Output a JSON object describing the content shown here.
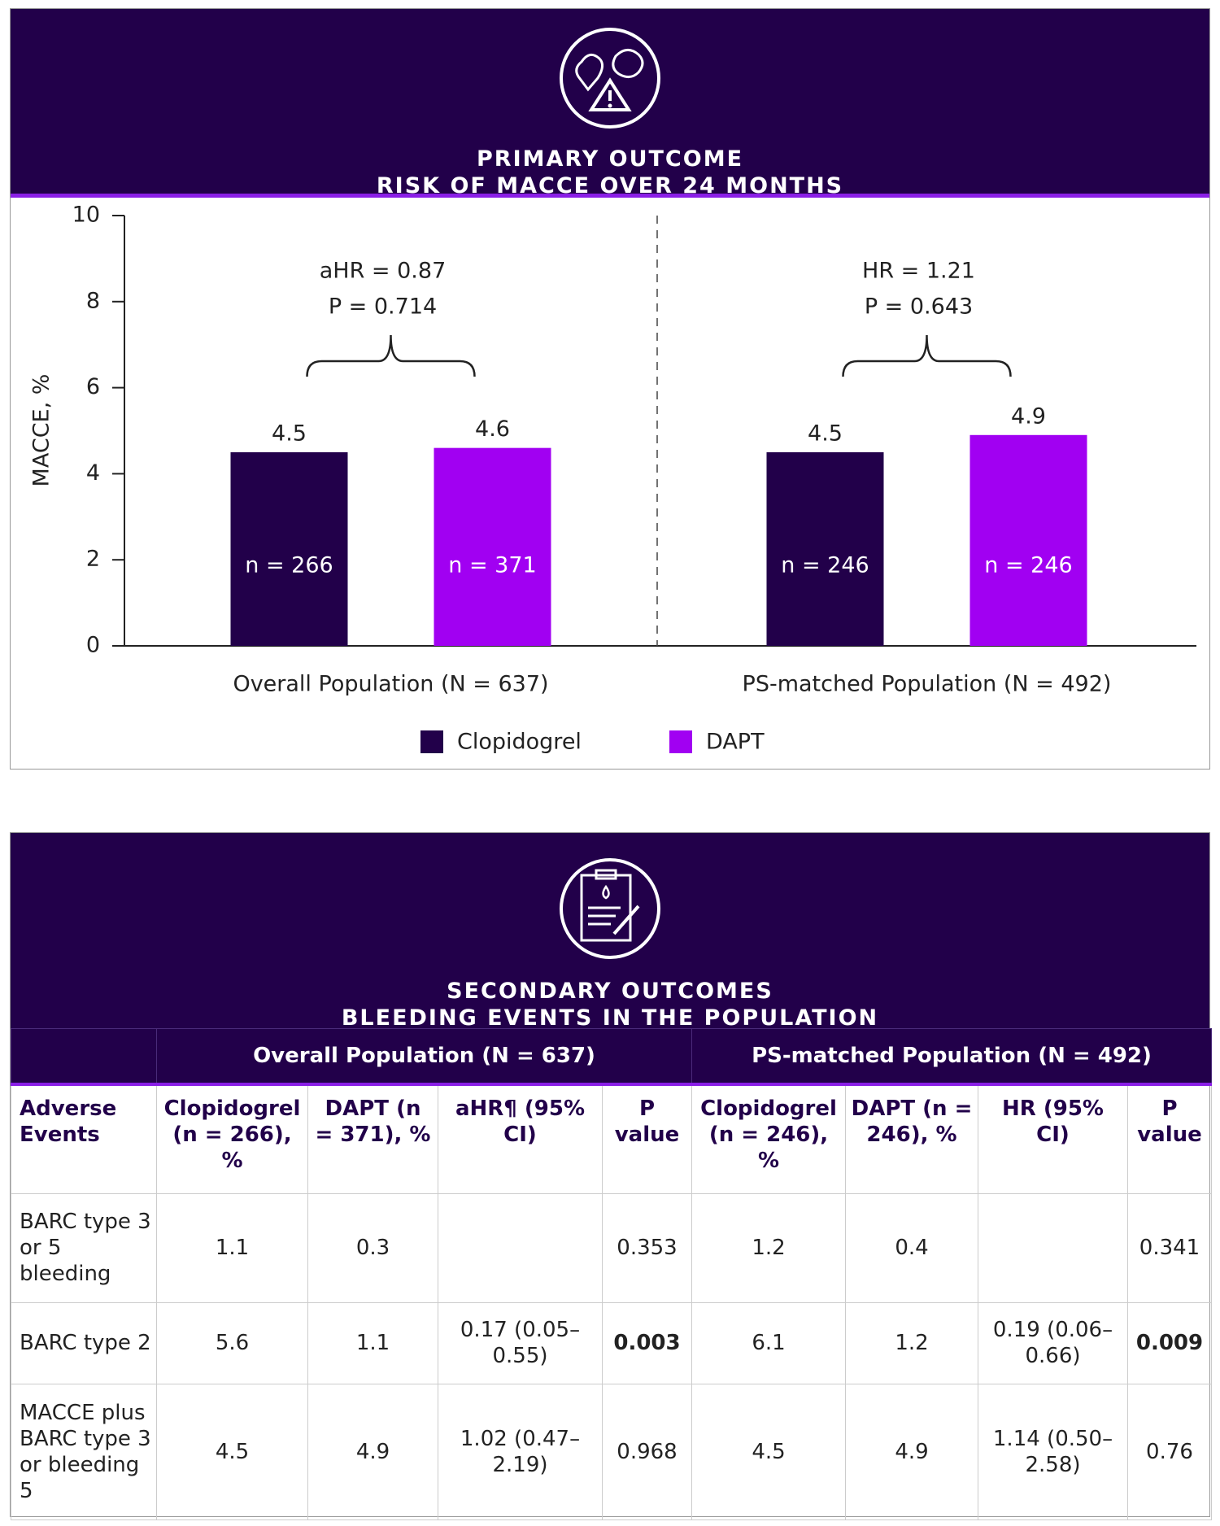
{
  "primary": {
    "title_lines": [
      "PRIMARY OUTCOME",
      "RISK OF MACCE OVER 24 MONTHS"
    ]
  },
  "chart_data": {
    "type": "bar",
    "ylabel": "MACCE, %",
    "categories": [
      "Overall Population (N = 637)",
      "PS-matched Population (N = 492)"
    ],
    "series": [
      {
        "name": "Clopidogrel",
        "color": "#22004a",
        "values": [
          4.5,
          4.5
        ],
        "bar_labels": [
          "n = 266",
          "n = 246"
        ]
      },
      {
        "name": "DAPT",
        "color": "#a100f2",
        "values": [
          4.6,
          4.9
        ],
        "bar_labels": [
          "n = 371",
          "n = 246"
        ]
      }
    ],
    "annotations": [
      [
        "aHR = 0.87",
        "P = 0.714"
      ],
      [
        "HR = 1.21",
        "P = 0.643"
      ]
    ],
    "ylim": [
      0,
      10
    ],
    "yticks": [
      0,
      2,
      4,
      6,
      8,
      10
    ]
  },
  "secondary": {
    "title_lines": [
      "SECONDARY OUTCOMES",
      "BLEEDING EVENTS IN THE POPULATION"
    ],
    "table": {
      "group_headers": [
        "Overall Population (N = 637)",
        "PS-matched Population (N = 492)"
      ],
      "columns": [
        "Adverse Events",
        "Clopidogrel (n = 266), %",
        "DAPT (n = 371), %",
        "aHR¶ (95% CI)",
        "P value",
        "Clopidogrel (n = 246), %",
        "DAPT (n = 246), %",
        "HR (95% CI)",
        "P value"
      ],
      "rows": [
        [
          {
            "text": "BARC type 3 or 5 bleeding"
          },
          {
            "text": "1.1"
          },
          {
            "text": "0.3"
          },
          null,
          {
            "text": "0.353"
          },
          {
            "text": "1.2"
          },
          {
            "text": "0.4"
          },
          null,
          {
            "text": "0.341"
          }
        ],
        [
          {
            "text": "BARC type 2"
          },
          {
            "text": "5.6"
          },
          {
            "text": "1.1"
          },
          {
            "text": "0.17 (0.05–0.55)"
          },
          {
            "text": "0.003",
            "bold": true
          },
          {
            "text": "6.1"
          },
          {
            "text": "1.2"
          },
          {
            "text": "0.19 (0.06–0.66)"
          },
          {
            "text": "0.009",
            "bold": true
          }
        ],
        [
          {
            "text": "MACCE plus BARC type 3 or bleeding 5"
          },
          {
            "text": "4.5"
          },
          {
            "text": "4.9"
          },
          {
            "text": "1.02 (0.47–2.19)"
          },
          {
            "text": "0.968"
          },
          {
            "text": "4.5"
          },
          {
            "text": "4.9"
          },
          {
            "text": "1.14 (0.50–2.58)"
          },
          {
            "text": "0.76"
          }
        ]
      ]
    }
  }
}
